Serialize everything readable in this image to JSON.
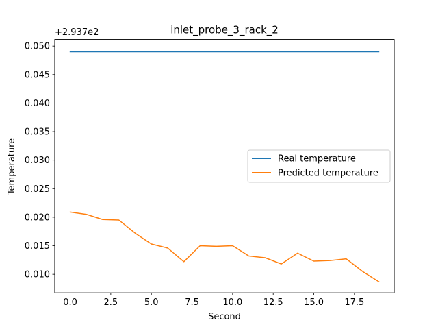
{
  "chart_data": {
    "type": "line",
    "title": "inlet_probe_3_rack_2",
    "xlabel": "Second",
    "ylabel": "Temperature",
    "offset_text": "+2.937e2",
    "xlim": [
      -0.95,
      19.95
    ],
    "ylim": [
      0.00675,
      0.05115
    ],
    "x_ticks": [
      0.0,
      2.5,
      5.0,
      7.5,
      10.0,
      12.5,
      15.0,
      17.5
    ],
    "x_tick_labels": [
      "0.0",
      "2.5",
      "5.0",
      "7.5",
      "10.0",
      "12.5",
      "15.0",
      "17.5"
    ],
    "y_ticks": [
      0.01,
      0.015,
      0.02,
      0.025,
      0.03,
      0.035,
      0.04,
      0.045,
      0.05
    ],
    "y_tick_labels": [
      "0.010",
      "0.015",
      "0.020",
      "0.025",
      "0.030",
      "0.035",
      "0.040",
      "0.045",
      "0.050"
    ],
    "x": [
      0,
      1,
      2,
      3,
      4,
      5,
      6,
      7,
      8,
      9,
      10,
      11,
      12,
      13,
      14,
      15,
      16,
      17,
      18,
      19
    ],
    "series": [
      {
        "name": "Real temperature",
        "color": "#1f77b4",
        "values": [
          0.049,
          0.049,
          0.049,
          0.049,
          0.049,
          0.049,
          0.049,
          0.049,
          0.049,
          0.049,
          0.049,
          0.049,
          0.049,
          0.049,
          0.049,
          0.049,
          0.049,
          0.049,
          0.049,
          0.049
        ]
      },
      {
        "name": "Predicted temperature",
        "color": "#ff7f0e",
        "values": [
          0.0209,
          0.0205,
          0.0196,
          0.0195,
          0.0172,
          0.0153,
          0.0146,
          0.0122,
          0.015,
          0.0149,
          0.015,
          0.0132,
          0.0129,
          0.0118,
          0.0137,
          0.0123,
          0.0124,
          0.0127,
          0.0105,
          0.0087
        ]
      }
    ],
    "legend_placement": "center-right",
    "grid": false
  }
}
